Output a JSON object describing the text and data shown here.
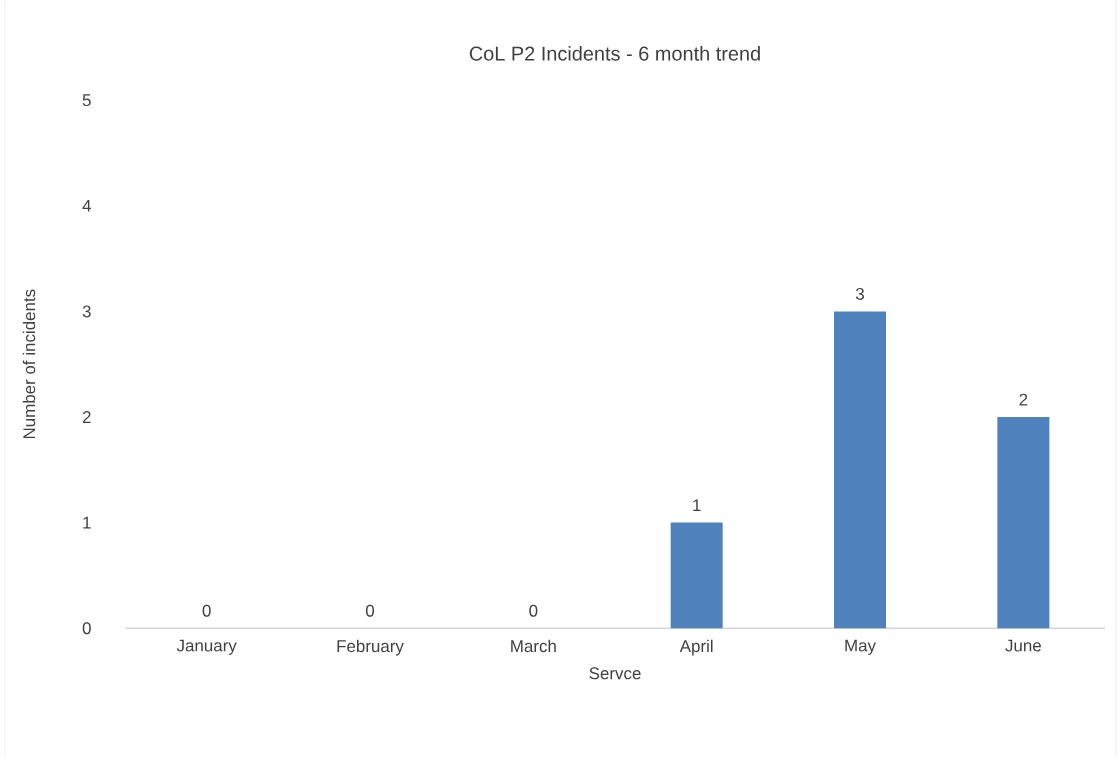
{
  "chart_data": {
    "type": "bar",
    "title": "CoL P2 Incidents - 6 month trend",
    "xlabel": "Servce",
    "ylabel": "Number of incidents",
    "categories": [
      "January",
      "February",
      "March",
      "April",
      "May",
      "June"
    ],
    "values": [
      0,
      0,
      0,
      1,
      3,
      2
    ],
    "color": "#4f81bd",
    "ylim": [
      0,
      5
    ],
    "yticks": [
      0,
      1,
      2,
      3,
      4,
      5
    ],
    "grid": false,
    "data_labels": true
  }
}
